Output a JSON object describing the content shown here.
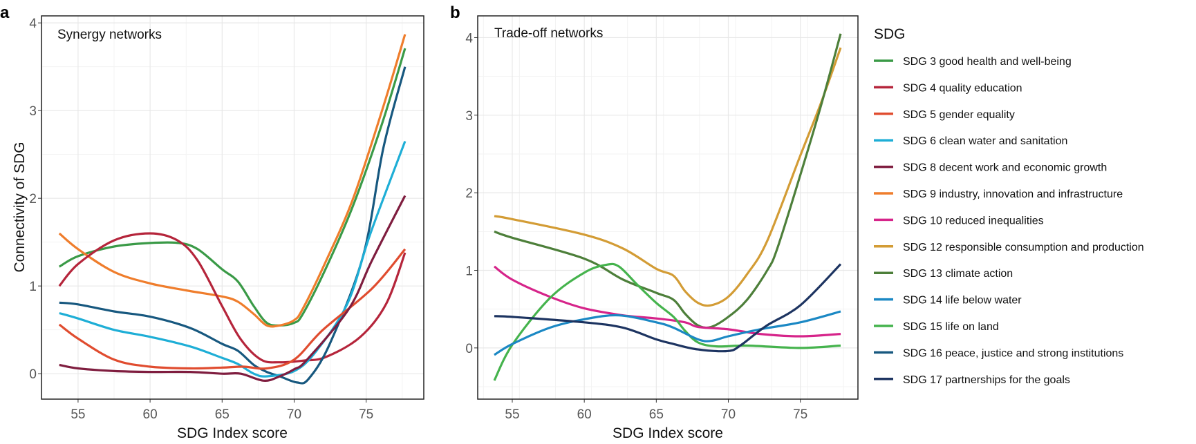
{
  "legend": {
    "title": "SDG",
    "items": [
      {
        "key": "SDG3",
        "label": "SDG 3 good health and well-being",
        "color": "#3a9a47"
      },
      {
        "key": "SDG4",
        "label": "SDG 4 quality education",
        "color": "#b5253b"
      },
      {
        "key": "SDG5",
        "label": "SDG 5 gender equality",
        "color": "#e04c2f"
      },
      {
        "key": "SDG6",
        "label": "SDG 6 clean water and sanitation",
        "color": "#1eaed6"
      },
      {
        "key": "SDG8",
        "label": "SDG 8 decent work and economic growth",
        "color": "#7f1d3f"
      },
      {
        "key": "SDG9",
        "label": "SDG 9 industry, innovation and infrastructure",
        "color": "#ef7d2c"
      },
      {
        "key": "SDG10",
        "label": "SDG 10 reduced inequalities",
        "color": "#d6248a"
      },
      {
        "key": "SDG12",
        "label": "SDG 12 responsible consumption and production",
        "color": "#d39c35"
      },
      {
        "key": "SDG13",
        "label": "SDG 13 climate action",
        "color": "#4d7f3a"
      },
      {
        "key": "SDG14",
        "label": "SDG 14 life below water",
        "color": "#1b88c4"
      },
      {
        "key": "SDG15",
        "label": "SDG 15 life on land",
        "color": "#45b34d"
      },
      {
        "key": "SDG16",
        "label": "SDG 16 peace, justice and strong institutions",
        "color": "#17587f"
      },
      {
        "key": "SDG17",
        "label": "SDG 17 partnerships for the goals",
        "color": "#1d3461"
      }
    ]
  },
  "chart_data": [
    {
      "type": "line",
      "panel": "a",
      "title": "Synergy networks",
      "xlabel": "SDG Index score",
      "ylabel": "Connectivity of SDG",
      "xlim": [
        52.46,
        79.0
      ],
      "ylim": [
        -0.29,
        4.08
      ],
      "x_ticks": [
        55,
        60,
        65,
        70,
        75
      ],
      "y_ticks": [
        0,
        1,
        2,
        3,
        4
      ],
      "grid": true,
      "series": [
        {
          "key": "SDG3",
          "points": [
            [
              53.7,
              1.22
            ],
            [
              55,
              1.34
            ],
            [
              57.5,
              1.45
            ],
            [
              60,
              1.49
            ],
            [
              62,
              1.49
            ],
            [
              63.3,
              1.42
            ],
            [
              65,
              1.19
            ],
            [
              66.1,
              1.05
            ],
            [
              67.2,
              0.77
            ],
            [
              68.1,
              0.58
            ],
            [
              69,
              0.55
            ],
            [
              70,
              0.58
            ],
            [
              70.6,
              0.68
            ],
            [
              72.2,
              1.2
            ],
            [
              74.1,
              1.92
            ],
            [
              76.1,
              2.85
            ],
            [
              77.7,
              3.71
            ]
          ]
        },
        {
          "key": "SDG9",
          "points": [
            [
              53.7,
              1.6
            ],
            [
              55,
              1.42
            ],
            [
              57.5,
              1.16
            ],
            [
              60,
              1.03
            ],
            [
              62.5,
              0.95
            ],
            [
              65,
              0.88
            ],
            [
              66.1,
              0.82
            ],
            [
              67.2,
              0.68
            ],
            [
              68.1,
              0.55
            ],
            [
              69,
              0.55
            ],
            [
              70,
              0.61
            ],
            [
              70.6,
              0.74
            ],
            [
              72.2,
              1.28
            ],
            [
              74.1,
              2.0
            ],
            [
              76.1,
              3.0
            ],
            [
              77.7,
              3.87
            ]
          ]
        },
        {
          "key": "SDG4",
          "points": [
            [
              53.7,
              1.0
            ],
            [
              55,
              1.25
            ],
            [
              57.5,
              1.52
            ],
            [
              60,
              1.6
            ],
            [
              61.9,
              1.52
            ],
            [
              63.3,
              1.29
            ],
            [
              65,
              0.77
            ],
            [
              66.3,
              0.39
            ],
            [
              67.7,
              0.16
            ],
            [
              69,
              0.13
            ],
            [
              70.7,
              0.15
            ],
            [
              72.2,
              0.19
            ],
            [
              74.6,
              0.42
            ],
            [
              76.4,
              0.8
            ],
            [
              77.7,
              1.38
            ]
          ]
        },
        {
          "key": "SDG16",
          "points": [
            [
              53.7,
              0.81
            ],
            [
              55,
              0.79
            ],
            [
              57.5,
              0.71
            ],
            [
              60,
              0.65
            ],
            [
              62.8,
              0.52
            ],
            [
              65,
              0.34
            ],
            [
              66.1,
              0.26
            ],
            [
              67.2,
              0.1
            ],
            [
              68.1,
              0.02
            ],
            [
              69,
              -0.03
            ],
            [
              70.2,
              -0.1
            ],
            [
              71,
              -0.06
            ],
            [
              72.5,
              0.35
            ],
            [
              74.8,
              1.35
            ],
            [
              76.2,
              2.58
            ],
            [
              77.7,
              3.5
            ]
          ]
        },
        {
          "key": "SDG6",
          "points": [
            [
              53.7,
              0.69
            ],
            [
              55,
              0.63
            ],
            [
              57.5,
              0.5
            ],
            [
              60,
              0.42
            ],
            [
              62.8,
              0.31
            ],
            [
              65,
              0.18
            ],
            [
              66.1,
              0.11
            ],
            [
              67.2,
              0.0
            ],
            [
              68.1,
              -0.03
            ],
            [
              70,
              0.03
            ],
            [
              71.5,
              0.25
            ],
            [
              73.7,
              0.8
            ],
            [
              75.3,
              1.6
            ],
            [
              77.7,
              2.65
            ]
          ]
        },
        {
          "key": "SDG5",
          "points": [
            [
              53.7,
              0.56
            ],
            [
              55,
              0.4
            ],
            [
              57.5,
              0.16
            ],
            [
              60,
              0.08
            ],
            [
              62.8,
              0.06
            ],
            [
              65,
              0.07
            ],
            [
              66.5,
              0.08
            ],
            [
              68.1,
              0.06
            ],
            [
              70,
              0.16
            ],
            [
              72,
              0.5
            ],
            [
              75.4,
              0.97
            ],
            [
              77.7,
              1.42
            ]
          ]
        },
        {
          "key": "SDG8",
          "points": [
            [
              53.7,
              0.1
            ],
            [
              55,
              0.06
            ],
            [
              57.5,
              0.03
            ],
            [
              60,
              0.02
            ],
            [
              62.8,
              0.02
            ],
            [
              65,
              0.0
            ],
            [
              66.3,
              0.0
            ],
            [
              67.9,
              -0.08
            ],
            [
              69,
              -0.03
            ],
            [
              70,
              0.05
            ],
            [
              70.9,
              0.16
            ],
            [
              73.8,
              0.74
            ],
            [
              75.4,
              1.29
            ],
            [
              77.7,
              2.03
            ]
          ]
        }
      ]
    },
    {
      "type": "line",
      "panel": "b",
      "title": "Trade-off networks",
      "xlabel": "SDG Index score",
      "ylabel": "",
      "xlim": [
        52.6,
        79.0
      ],
      "ylim": [
        -0.66,
        4.28
      ],
      "x_ticks": [
        55,
        60,
        65,
        70,
        75
      ],
      "y_ticks": [
        0,
        1,
        2,
        3,
        4
      ],
      "grid": true,
      "series": [
        {
          "key": "SDG12",
          "points": [
            [
              53.75,
              1.7
            ],
            [
              55,
              1.66
            ],
            [
              60,
              1.46
            ],
            [
              62.7,
              1.28
            ],
            [
              65,
              1.02
            ],
            [
              66.2,
              0.93
            ],
            [
              67,
              0.73
            ],
            [
              67.9,
              0.58
            ],
            [
              68.8,
              0.55
            ],
            [
              70,
              0.66
            ],
            [
              71.3,
              0.95
            ],
            [
              72.7,
              1.38
            ],
            [
              75,
              2.48
            ],
            [
              76.4,
              3.14
            ],
            [
              77.8,
              3.87
            ]
          ]
        },
        {
          "key": "SDG13",
          "points": [
            [
              53.75,
              1.5
            ],
            [
              55,
              1.42
            ],
            [
              60,
              1.15
            ],
            [
              62.7,
              0.88
            ],
            [
              65,
              0.71
            ],
            [
              66.2,
              0.62
            ],
            [
              67,
              0.44
            ],
            [
              67.9,
              0.29
            ],
            [
              68.8,
              0.27
            ],
            [
              70,
              0.4
            ],
            [
              71.3,
              0.62
            ],
            [
              72.7,
              1.0
            ],
            [
              73.4,
              1.28
            ],
            [
              75,
              2.23
            ],
            [
              76.4,
              3.1
            ],
            [
              77.8,
              4.05
            ]
          ]
        },
        {
          "key": "SDG10",
          "points": [
            [
              53.75,
              1.05
            ],
            [
              55,
              0.88
            ],
            [
              57.6,
              0.66
            ],
            [
              60,
              0.51
            ],
            [
              62.7,
              0.42
            ],
            [
              65,
              0.38
            ],
            [
              67,
              0.33
            ],
            [
              67.9,
              0.27
            ],
            [
              70,
              0.24
            ],
            [
              72.2,
              0.18
            ],
            [
              75,
              0.15
            ],
            [
              77.8,
              0.18
            ]
          ]
        },
        {
          "key": "SDG15",
          "points": [
            [
              53.75,
              -0.42
            ],
            [
              55,
              0.04
            ],
            [
              57.6,
              0.64
            ],
            [
              60,
              0.97
            ],
            [
              61.5,
              1.07
            ],
            [
              62.4,
              1.05
            ],
            [
              63.7,
              0.81
            ],
            [
              65,
              0.58
            ],
            [
              66.2,
              0.4
            ],
            [
              67,
              0.22
            ],
            [
              67.9,
              0.07
            ],
            [
              69.2,
              0.02
            ],
            [
              71.3,
              0.03
            ],
            [
              75,
              0.0
            ],
            [
              77.8,
              0.03
            ]
          ]
        },
        {
          "key": "SDG14",
          "points": [
            [
              53.75,
              -0.09
            ],
            [
              55,
              0.05
            ],
            [
              57.6,
              0.26
            ],
            [
              60,
              0.37
            ],
            [
              62.4,
              0.42
            ],
            [
              65,
              0.33
            ],
            [
              66.2,
              0.26
            ],
            [
              67.9,
              0.11
            ],
            [
              68.8,
              0.09
            ],
            [
              70,
              0.15
            ],
            [
              72.2,
              0.24
            ],
            [
              75,
              0.33
            ],
            [
              77.8,
              0.47
            ]
          ]
        },
        {
          "key": "SDG17",
          "points": [
            [
              53.75,
              0.41
            ],
            [
              55,
              0.4
            ],
            [
              60,
              0.33
            ],
            [
              62.7,
              0.26
            ],
            [
              65,
              0.11
            ],
            [
              66.2,
              0.05
            ],
            [
              67.9,
              -0.02
            ],
            [
              70,
              -0.04
            ],
            [
              70.9,
              0.04
            ],
            [
              72.6,
              0.28
            ],
            [
              75,
              0.55
            ],
            [
              77.8,
              1.08
            ]
          ]
        }
      ]
    }
  ]
}
